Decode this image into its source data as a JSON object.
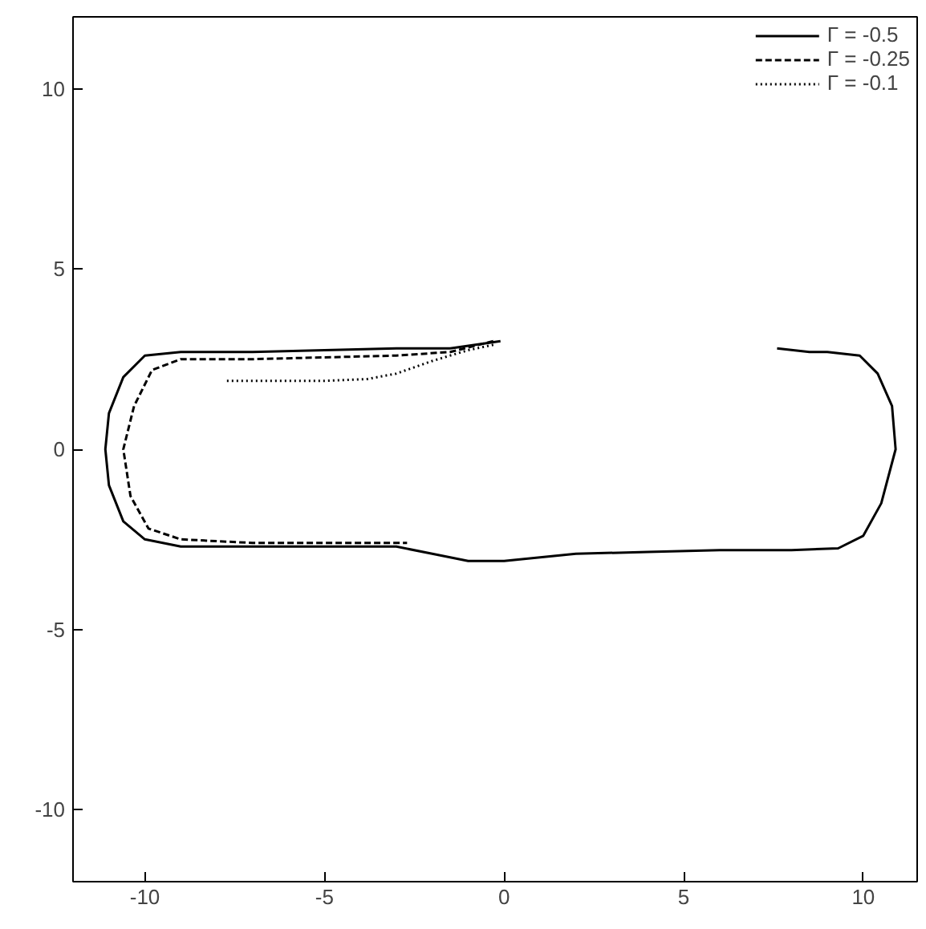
{
  "chart_data": {
    "type": "line",
    "xlim": [
      -12,
      11.5
    ],
    "ylim": [
      -12,
      12
    ],
    "xticks": [
      -10,
      -5,
      0,
      5,
      10
    ],
    "yticks": [
      -10,
      -5,
      0,
      5,
      10
    ],
    "grid": false,
    "legend": "top right",
    "series": [
      {
        "name": "Γ = -0.5",
        "color": "#000000",
        "line_style": "solid",
        "x": [
          -0.1,
          -1.5,
          -3,
          -5,
          -7,
          -9,
          -10,
          -10.6,
          -11,
          -11.1,
          -11,
          -10.6,
          -10,
          -9,
          -7,
          -5,
          -3,
          -2,
          -1,
          0,
          1,
          2,
          4,
          6,
          8,
          9.3,
          10,
          10.5,
          10.9,
          10.8,
          10.4,
          9.9,
          9,
          8.5,
          7.6
        ],
        "values": [
          3.0,
          2.8,
          2.8,
          2.75,
          2.7,
          2.7,
          2.6,
          2.0,
          1.0,
          0,
          -1.0,
          -2.0,
          -2.5,
          -2.7,
          -2.7,
          -2.7,
          -2.7,
          -2.9,
          -3.1,
          -3.1,
          -3.0,
          -2.9,
          -2.85,
          -2.8,
          -2.8,
          -2.75,
          -2.4,
          -1.5,
          0,
          1.2,
          2.1,
          2.6,
          2.7,
          2.7,
          2.8
        ]
      },
      {
        "name": "Γ = -0.25",
        "color": "#000000",
        "line_style": "dashed",
        "x": [
          -0.3,
          -1.5,
          -3,
          -5,
          -7,
          -9,
          -9.8,
          -10.3,
          -10.6,
          -10.4,
          -9.9,
          -9,
          -7,
          -5,
          -3,
          -2.7
        ],
        "values": [
          3.0,
          2.7,
          2.6,
          2.55,
          2.5,
          2.5,
          2.2,
          1.2,
          0,
          -1.3,
          -2.2,
          -2.5,
          -2.6,
          -2.6,
          -2.6,
          -2.6
        ]
      },
      {
        "name": "Γ = -0.1",
        "color": "#000000",
        "line_style": "dotted",
        "x": [
          -0.3,
          -1,
          -2,
          -3,
          -3.8,
          -5,
          -6.5,
          -7.8
        ],
        "values": [
          2.9,
          2.75,
          2.45,
          2.1,
          1.95,
          1.9,
          1.9,
          1.9
        ]
      }
    ]
  }
}
